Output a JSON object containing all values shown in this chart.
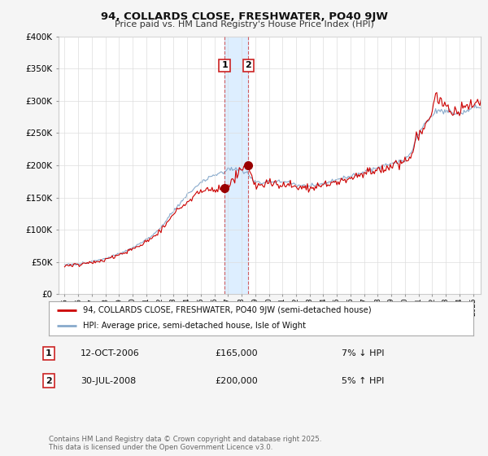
{
  "title": "94, COLLARDS CLOSE, FRESHWATER, PO40 9JW",
  "subtitle": "Price paid vs. HM Land Registry's House Price Index (HPI)",
  "ylim": [
    0,
    400000
  ],
  "yticks": [
    0,
    50000,
    100000,
    150000,
    200000,
    250000,
    300000,
    350000,
    400000
  ],
  "ytick_labels": [
    "£0",
    "£50K",
    "£100K",
    "£150K",
    "£200K",
    "£250K",
    "£300K",
    "£350K",
    "£400K"
  ],
  "line1_label": "94, COLLARDS CLOSE, FRESHWATER, PO40 9JW (semi-detached house)",
  "line2_label": "HPI: Average price, semi-detached house, Isle of Wight",
  "line1_color": "#cc0000",
  "line2_color": "#88aacc",
  "transaction1_date": "12-OCT-2006",
  "transaction1_price": 165000,
  "transaction1_pct": "7%",
  "transaction1_dir": "↓",
  "transaction1_year": 2006,
  "transaction1_month": 10,
  "transaction2_date": "30-JUL-2008",
  "transaction2_price": 200000,
  "transaction2_pct": "5%",
  "transaction2_dir": "↑",
  "transaction2_year": 2008,
  "transaction2_month": 7,
  "footer": "Contains HM Land Registry data © Crown copyright and database right 2025.\nThis data is licensed under the Open Government Licence v3.0.",
  "bg_color": "#f5f5f5",
  "plot_bg_color": "#ffffff",
  "grid_color": "#dddddd",
  "span_color": "#ddeeff",
  "vline_color": "#cc4444",
  "marker_color": "#990000",
  "box_edge_color": "#cc2222"
}
